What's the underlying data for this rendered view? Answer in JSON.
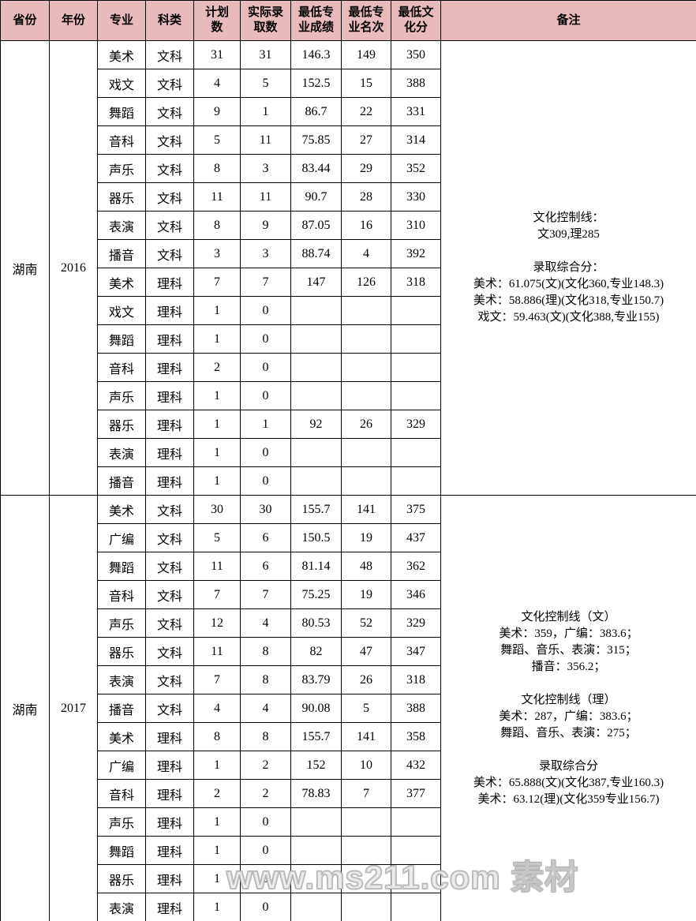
{
  "colors": {
    "header_background": "#e9babc",
    "border": "#000000",
    "text": "#000000",
    "watermark": "#ffffff"
  },
  "headers": [
    "省份",
    "年份",
    "专业",
    "科类",
    "计划\n数",
    "实际录\n取数",
    "最低专\n业成绩",
    "最低专\n业名次",
    "最低文\n化分",
    "备注"
  ],
  "sections": [
    {
      "province": "湖南",
      "year": "2016",
      "rows": [
        [
          "美术",
          "文科",
          "31",
          "31",
          "146.3",
          "149",
          "350"
        ],
        [
          "戏文",
          "文科",
          "4",
          "5",
          "152.5",
          "15",
          "388"
        ],
        [
          "舞蹈",
          "文科",
          "9",
          "1",
          "86.7",
          "22",
          "331"
        ],
        [
          "音科",
          "文科",
          "5",
          "11",
          "75.85",
          "27",
          "314"
        ],
        [
          "声乐",
          "文科",
          "8",
          "3",
          "83.44",
          "29",
          "352"
        ],
        [
          "器乐",
          "文科",
          "11",
          "11",
          "90.7",
          "28",
          "330"
        ],
        [
          "表演",
          "文科",
          "8",
          "9",
          "87.05",
          "16",
          "310"
        ],
        [
          "播音",
          "文科",
          "3",
          "3",
          "88.74",
          "4",
          "392"
        ],
        [
          "美术",
          "理科",
          "7",
          "7",
          "147",
          "126",
          "318"
        ],
        [
          "戏文",
          "理科",
          "1",
          "0",
          "",
          "",
          ""
        ],
        [
          "舞蹈",
          "理科",
          "1",
          "0",
          "",
          "",
          ""
        ],
        [
          "音科",
          "理科",
          "2",
          "0",
          "",
          "",
          ""
        ],
        [
          "声乐",
          "理科",
          "1",
          "0",
          "",
          "",
          ""
        ],
        [
          "器乐",
          "理科",
          "1",
          "1",
          "92",
          "26",
          "329"
        ],
        [
          "表演",
          "理科",
          "1",
          "0",
          "",
          "",
          ""
        ],
        [
          "播音",
          "理科",
          "1",
          "0",
          "",
          "",
          ""
        ]
      ],
      "remark_lines": [
        "文化控制线：",
        "文309,理285",
        "",
        "录取综合分：",
        "美术：61.075(文)(文化360,专业148.3)",
        "美术：58.886(理)(文化318,专业150.7)",
        "戏文：59.463(文)(文化388,专业155)"
      ]
    },
    {
      "province": "湖南",
      "year": "2017",
      "rows": [
        [
          "美术",
          "文科",
          "30",
          "30",
          "155.7",
          "141",
          "375"
        ],
        [
          "广编",
          "文科",
          "5",
          "6",
          "150.5",
          "19",
          "437"
        ],
        [
          "舞蹈",
          "文科",
          "11",
          "6",
          "81.14",
          "48",
          "362"
        ],
        [
          "音科",
          "文科",
          "7",
          "7",
          "75.25",
          "19",
          "346"
        ],
        [
          "声乐",
          "文科",
          "12",
          "4",
          "80.53",
          "52",
          "329"
        ],
        [
          "器乐",
          "文科",
          "11",
          "8",
          "82",
          "47",
          "347"
        ],
        [
          "表演",
          "文科",
          "7",
          "8",
          "83.79",
          "26",
          "318"
        ],
        [
          "播音",
          "文科",
          "4",
          "4",
          "90.08",
          "5",
          "388"
        ],
        [
          "美术",
          "理科",
          "8",
          "8",
          "155.7",
          "141",
          "358"
        ],
        [
          "广编",
          "理科",
          "1",
          "2",
          "152",
          "10",
          "432"
        ],
        [
          "音科",
          "理科",
          "2",
          "2",
          "78.83",
          "7",
          "377"
        ],
        [
          "声乐",
          "理科",
          "1",
          "0",
          "",
          "",
          ""
        ],
        [
          "舞蹈",
          "理科",
          "1",
          "0",
          "",
          "",
          ""
        ],
        [
          "器乐",
          "理科",
          "1",
          "0",
          "",
          "",
          ""
        ],
        [
          "表演",
          "理科",
          "1",
          "0",
          "",
          "",
          ""
        ]
      ],
      "remark_lines": [
        "文化控制线（文）",
        "美术：359，广编：383.6；",
        "舞蹈、音乐、表演：315；",
        "播音：356.2；",
        "",
        "文化控制线（理）",
        "美术：287，广编：383.6；",
        "舞蹈、音乐、表演：275；",
        "",
        "录取综合分",
        "美术：65.888(文)(文化387,专业160.3)",
        "美术：63.12(理)(文化359专业156.7)"
      ]
    }
  ],
  "watermark": {
    "text": "www.ms211.com 素材"
  }
}
